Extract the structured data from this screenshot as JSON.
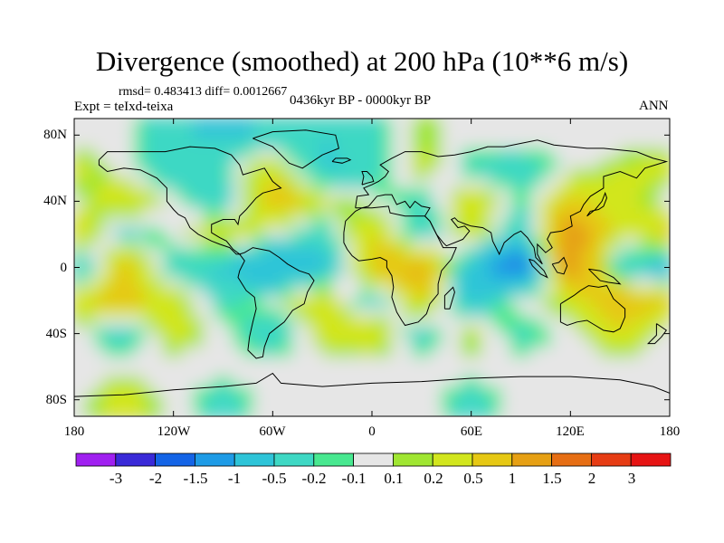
{
  "chart_data": {
    "type": "heatmap",
    "title": "Divergence (smoothed) at 200 hPa (10**6 m/s)",
    "stats_text": "rmsd= 0.483413  diff= 0.0012667",
    "left_label": "Expt = teIxd-teixa",
    "center_label": "0436kyr BP - 0000kyr BP",
    "right_label": "ANN",
    "x_ticks": [
      "180",
      "120W",
      "60W",
      "0",
      "60E",
      "120E",
      "180"
    ],
    "x_tick_values": [
      -180,
      -120,
      -60,
      0,
      60,
      120,
      180
    ],
    "y_ticks": [
      "80N",
      "40N",
      "0",
      "40S",
      "80S"
    ],
    "y_tick_values": [
      80,
      40,
      0,
      -40,
      -80
    ],
    "xlim": [
      -180,
      180
    ],
    "ylim": [
      -90,
      90
    ],
    "colorbar": {
      "labels": [
        "-3",
        "-2",
        "-1.5",
        "-1",
        "-0.5",
        "-0.2",
        "-0.1",
        "0.1",
        "0.2",
        "0.5",
        "1",
        "1.5",
        "2",
        "3"
      ],
      "levels": [
        -3,
        -2,
        -1.5,
        -1,
        -0.5,
        -0.2,
        -0.1,
        0.1,
        0.2,
        0.5,
        1,
        1.5,
        2,
        3
      ],
      "colors": [
        "#a020f0",
        "#3a2ad8",
        "#1464e6",
        "#1e9be6",
        "#2ec4d8",
        "#3ed8c4",
        "#48e890",
        "#e6e6e6",
        "#a0e632",
        "#d2e61e",
        "#e6c814",
        "#e6a014",
        "#e66e14",
        "#e63c14",
        "#e61414"
      ]
    },
    "field_sample": {
      "lats": [
        80,
        60,
        40,
        20,
        0,
        -20,
        -40,
        -60,
        -80
      ],
      "lons": [
        -180,
        -150,
        -120,
        -90,
        -60,
        -30,
        0,
        30,
        60,
        90,
        120,
        150
      ],
      "values": [
        [
          0.0,
          0.0,
          -0.4,
          -0.6,
          -0.4,
          -0.5,
          -0.3,
          0.2,
          0.0,
          0.0,
          0.0,
          0.0
        ],
        [
          0.3,
          0.0,
          -0.5,
          -0.2,
          0.4,
          -0.6,
          -0.4,
          0.3,
          -0.3,
          -0.4,
          0.0,
          0.2
        ],
        [
          0.0,
          0.5,
          0.0,
          -0.5,
          0.8,
          0.3,
          0.0,
          -0.3,
          0.5,
          -0.2,
          0.6,
          0.3
        ],
        [
          0.6,
          -0.4,
          0.0,
          0.5,
          0.0,
          -0.4,
          0.6,
          -0.5,
          0.4,
          -0.6,
          1.5,
          0.2
        ],
        [
          -0.8,
          0.8,
          -0.4,
          -0.6,
          -1.0,
          -0.7,
          0.6,
          1.2,
          -0.8,
          -1.8,
          1.5,
          -0.5
        ],
        [
          0.5,
          0.6,
          0.4,
          -0.3,
          0.0,
          0.5,
          -0.4,
          0.5,
          -0.6,
          0.0,
          0.3,
          1.0
        ],
        [
          0.0,
          -0.4,
          0.3,
          0.0,
          -0.5,
          0.3,
          0.5,
          -0.4,
          0.3,
          -0.3,
          0.0,
          0.4
        ],
        [
          0.0,
          0.0,
          0.0,
          0.0,
          0.0,
          0.0,
          0.0,
          0.0,
          0.0,
          0.0,
          0.0,
          0.0
        ],
        [
          0.0,
          0.4,
          0.0,
          -0.3,
          0.0,
          0.0,
          0.0,
          0.0,
          -0.3,
          0.0,
          0.0,
          0.0
        ]
      ]
    }
  }
}
